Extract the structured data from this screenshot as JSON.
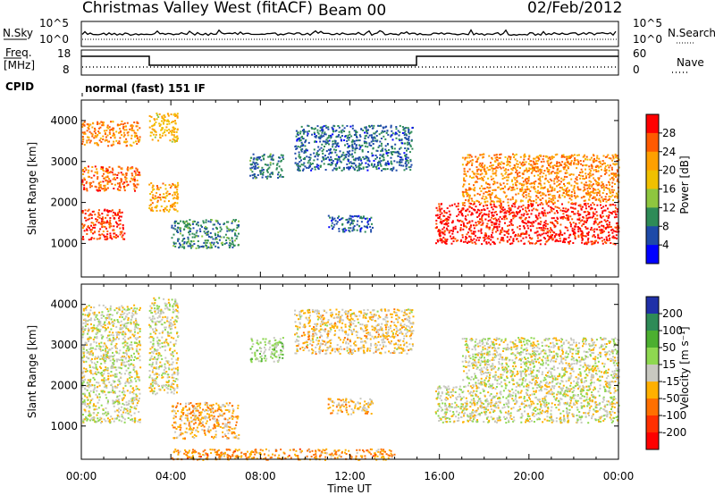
{
  "header": {
    "station": "Christmas Valley West (fitACF)",
    "beam": "Beam 00",
    "date": "02/Feb/2012"
  },
  "strips": {
    "nsky_label": "N.Sky",
    "nsky_ticks": [
      "10^5",
      "10^0"
    ],
    "nsearch_label": "N.Search",
    "freq_label_1": "Freq.",
    "freq_label_2": "[MHz]",
    "freq_ticks": [
      "18",
      "8"
    ],
    "nave_label": "Nave",
    "nave_ticks": [
      "60",
      "0"
    ],
    "cpid_label": "CPID",
    "cpid_value": "normal (fast) 151 IF"
  },
  "power_panel": {
    "ylabel": "Slant Range [km]",
    "colorbar_label": "Power [dB]",
    "colorbar_ticks": [
      "28",
      "24",
      "20",
      "16",
      "12",
      "8",
      "4"
    ],
    "colors": [
      "#ff0000",
      "#ff5a00",
      "#ffa000",
      "#f0c000",
      "#8ec63f",
      "#2e8b57",
      "#1e4aa8",
      "#0000ff"
    ]
  },
  "velocity_panel": {
    "ylabel": "Slant Range [km]",
    "colorbar_label": "Velocity [m s⁻¹]",
    "colorbar_ticks": [
      "200",
      "100",
      "50",
      "15",
      "-15",
      "-50",
      "-100",
      "-200"
    ],
    "colors": [
      "#2030a8",
      "#2e8b57",
      "#4caf30",
      "#8ed850",
      "#c8c8c0",
      "#ffb000",
      "#ff7000",
      "#ff3000",
      "#ff0000"
    ]
  },
  "xaxis": {
    "label": "Time UT",
    "ticks": [
      "00:00",
      "04:00",
      "08:00",
      "12:00",
      "16:00",
      "20:00",
      "00:00"
    ]
  },
  "chart_data": [
    {
      "type": "heatmap",
      "title": "Christmas Valley West (fitACF)  Beam 00  02/Feb/2012",
      "xlabel": "Time UT",
      "ylabel": "Slant Range [km]",
      "xlim_hours": [
        0,
        24
      ],
      "ylim_km": [
        180,
        4500
      ],
      "yticks": [
        1000,
        2000,
        3000,
        4000
      ],
      "colorbar": "Power [dB]",
      "colorbar_range": [
        0,
        30
      ],
      "regions": [
        {
          "t": [
            0.0,
            1.9
          ],
          "r": [
            1100,
            1850
          ],
          "value": 26
        },
        {
          "t": [
            0.0,
            2.6
          ],
          "r": [
            2300,
            2900
          ],
          "value": 24
        },
        {
          "t": [
            0.0,
            2.6
          ],
          "r": [
            3400,
            4000
          ],
          "value": 22
        },
        {
          "t": [
            3.0,
            4.3
          ],
          "r": [
            1800,
            2500
          ],
          "value": 20
        },
        {
          "t": [
            3.0,
            4.3
          ],
          "r": [
            3500,
            4200
          ],
          "value": 18
        },
        {
          "t": [
            4.0,
            7.0
          ],
          "r": [
            900,
            1600
          ],
          "value": 9
        },
        {
          "t": [
            7.5,
            9.0
          ],
          "r": [
            2600,
            3200
          ],
          "value": 8
        },
        {
          "t": [
            9.5,
            14.8
          ],
          "r": [
            2800,
            3900
          ],
          "value": 7
        },
        {
          "t": [
            11.0,
            13.0
          ],
          "r": [
            1300,
            1700
          ],
          "value": 6
        },
        {
          "t": [
            15.8,
            24.0
          ],
          "r": [
            1000,
            2000
          ],
          "value": 28
        },
        {
          "t": [
            17.0,
            24.0
          ],
          "r": [
            2000,
            3200
          ],
          "value": 22
        }
      ]
    },
    {
      "type": "heatmap",
      "title": "",
      "xlabel": "Time UT",
      "ylabel": "Slant Range [km]",
      "xlim_hours": [
        0,
        24
      ],
      "ylim_km": [
        180,
        4500
      ],
      "yticks": [
        1000,
        2000,
        3000,
        4000
      ],
      "colorbar": "Velocity [m s⁻¹]",
      "colorbar_range": [
        -250,
        250
      ],
      "regions": [
        {
          "t": [
            0.0,
            2.6
          ],
          "r": [
            1100,
            4000
          ],
          "value": 0
        },
        {
          "t": [
            3.0,
            4.3
          ],
          "r": [
            1800,
            4200
          ],
          "value": 0
        },
        {
          "t": [
            4.0,
            7.0
          ],
          "r": [
            700,
            1600
          ],
          "value": -60
        },
        {
          "t": [
            7.5,
            9.0
          ],
          "r": [
            2600,
            3200
          ],
          "value": 40
        },
        {
          "t": [
            9.5,
            14.8
          ],
          "r": [
            2800,
            3900
          ],
          "value": -30
        },
        {
          "t": [
            11.0,
            13.0
          ],
          "r": [
            1300,
            1700
          ],
          "value": -40
        },
        {
          "t": [
            15.8,
            24.0
          ],
          "r": [
            1100,
            2000
          ],
          "value": 0
        },
        {
          "t": [
            17.0,
            24.0
          ],
          "r": [
            2000,
            3200
          ],
          "value": 5
        },
        {
          "t": [
            4.0,
            14.0
          ],
          "r": [
            180,
            450
          ],
          "value": -80
        }
      ]
    }
  ]
}
